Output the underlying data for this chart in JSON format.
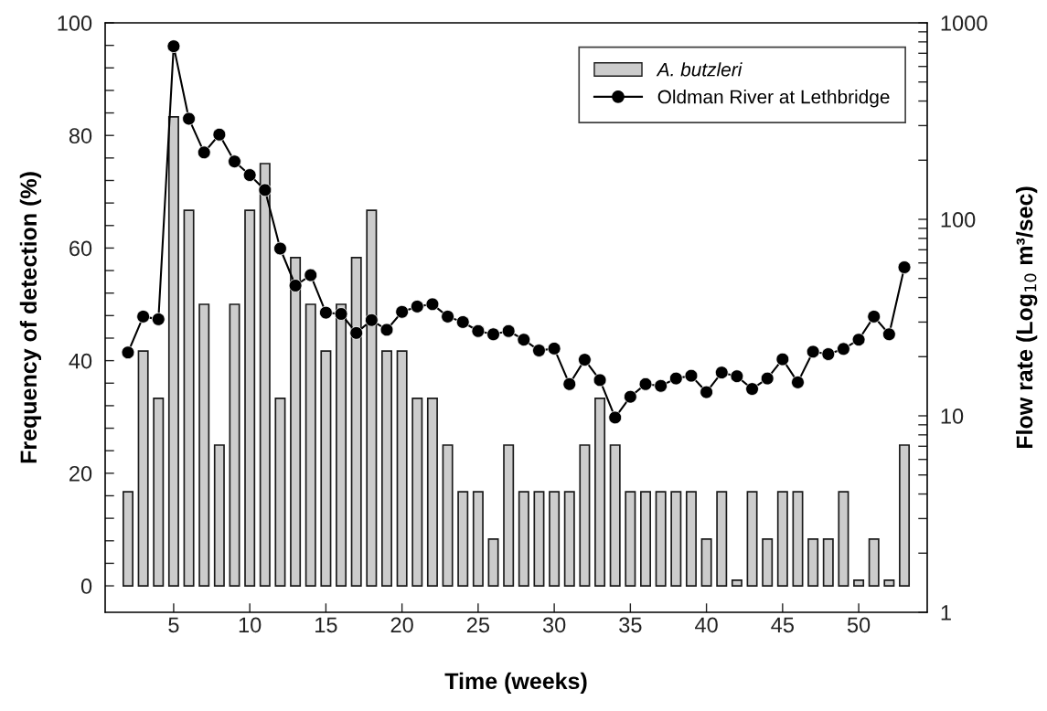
{
  "chart_data": {
    "type": "bar",
    "xlabel": "Time (weeks)",
    "ylabel": "Frequency of detection (%)",
    "y2label": "Flow rate (Log$_{10}$ m³/sec)",
    "x": [
      2,
      3,
      4,
      5,
      6,
      7,
      8,
      9,
      10,
      11,
      12,
      13,
      14,
      15,
      16,
      17,
      18,
      19,
      20,
      21,
      22,
      23,
      24,
      25,
      26,
      27,
      28,
      29,
      30,
      31,
      32,
      33,
      34,
      35,
      36,
      37,
      38,
      39,
      40,
      41,
      42,
      43,
      44,
      45,
      46,
      47,
      48,
      49,
      50,
      51,
      52,
      53
    ],
    "series": [
      {
        "name": "A. butzleri",
        "color": "#cccccc",
        "values": [
          16.7,
          41.7,
          33.3,
          83.3,
          66.7,
          50,
          25,
          50,
          66.7,
          75,
          33.3,
          58.3,
          50,
          41.7,
          50,
          58.3,
          66.7,
          41.7,
          41.7,
          33.3,
          33.3,
          25,
          16.7,
          16.7,
          8.3,
          25,
          16.7,
          16.7,
          16.7,
          16.7,
          25,
          33.3,
          25,
          16.7,
          16.7,
          16.7,
          16.7,
          16.7,
          8.3,
          16.7,
          1,
          16.7,
          8.3,
          16.7,
          16.7,
          8.3,
          8.3,
          16.7,
          1,
          8.3,
          1,
          25
        ]
      },
      {
        "name": "Oldman River at Lethbridge",
        "type": "line",
        "axis": "y2",
        "color": "#000000",
        "marker": "circle",
        "line_style": "solid",
        "values": [
          21,
          32,
          31,
          760,
          325,
          219,
          270,
          197,
          168,
          141,
          71,
          46,
          52,
          33.5,
          33,
          26.4,
          30.7,
          27.4,
          33.8,
          36,
          37,
          32,
          30,
          27,
          26,
          27,
          24.4,
          21.5,
          22,
          14.5,
          19.3,
          15.2,
          9.8,
          12.5,
          14.5,
          14.2,
          15.5,
          16,
          13.2,
          16.6,
          15.9,
          13.7,
          15.5,
          19.4,
          14.8,
          21.2,
          20.6,
          21.9,
          24.4,
          32,
          26,
          57
        ]
      }
    ],
    "xlim": [
      0.5,
      54.5
    ],
    "xticks": [
      5,
      10,
      15,
      20,
      25,
      30,
      35,
      40,
      45,
      50
    ],
    "ylim": [
      -4.7,
      100
    ],
    "yticks": [
      0,
      {
        "value": 4,
        "label": null
      },
      {
        "value": 8,
        "label": null
      },
      {
        "value": 12,
        "label": null
      },
      {
        "value": 16,
        "label": null
      },
      20,
      {
        "value": 24,
        "label": null
      },
      {
        "value": 28,
        "label": null
      },
      {
        "value": 32,
        "label": null
      },
      {
        "value": 36,
        "label": null
      },
      40,
      {
        "value": 44,
        "label": null
      },
      {
        "value": 48,
        "label": null
      },
      {
        "value": 52,
        "label": null
      },
      {
        "value": 56,
        "label": null
      },
      60,
      {
        "value": 64,
        "label": null
      },
      {
        "value": 68,
        "label": null
      },
      {
        "value": 72,
        "label": null
      },
      {
        "value": 76,
        "label": null
      },
      80,
      {
        "value": 84,
        "label": null
      },
      {
        "value": 88,
        "label": null
      },
      {
        "value": 92,
        "label": null
      },
      {
        "value": 96,
        "label": null
      },
      100
    ],
    "y2lim": [
      1,
      1000
    ],
    "y2ticks": [
      1,
      {
        "value": 2,
        "label": null
      },
      {
        "value": 3,
        "label": null
      },
      {
        "value": 4,
        "label": null
      },
      {
        "value": 5,
        "label": null
      },
      {
        "value": 6,
        "label": null
      },
      {
        "value": 7,
        "label": null
      },
      {
        "value": 8,
        "label": null
      },
      {
        "value": 9,
        "label": null
      },
      10,
      {
        "value": 20,
        "label": null
      },
      {
        "value": 30,
        "label": null
      },
      {
        "value": 40,
        "label": null
      },
      {
        "value": 50,
        "label": null
      },
      {
        "value": 60,
        "label": null
      },
      {
        "value": 70,
        "label": null
      },
      {
        "value": 80,
        "label": null
      },
      {
        "value": 90,
        "label": null
      },
      100,
      {
        "value": 200,
        "label": null
      },
      {
        "value": 300,
        "label": null
      },
      {
        "value": 400,
        "label": null
      },
      {
        "value": 500,
        "label": null
      },
      {
        "value": 600,
        "label": null
      },
      {
        "value": 700,
        "label": null
      },
      {
        "value": 800,
        "label": null
      },
      {
        "value": 900,
        "label": null
      },
      1000
    ],
    "log": "y2",
    "grid": false,
    "legend": "top right"
  }
}
